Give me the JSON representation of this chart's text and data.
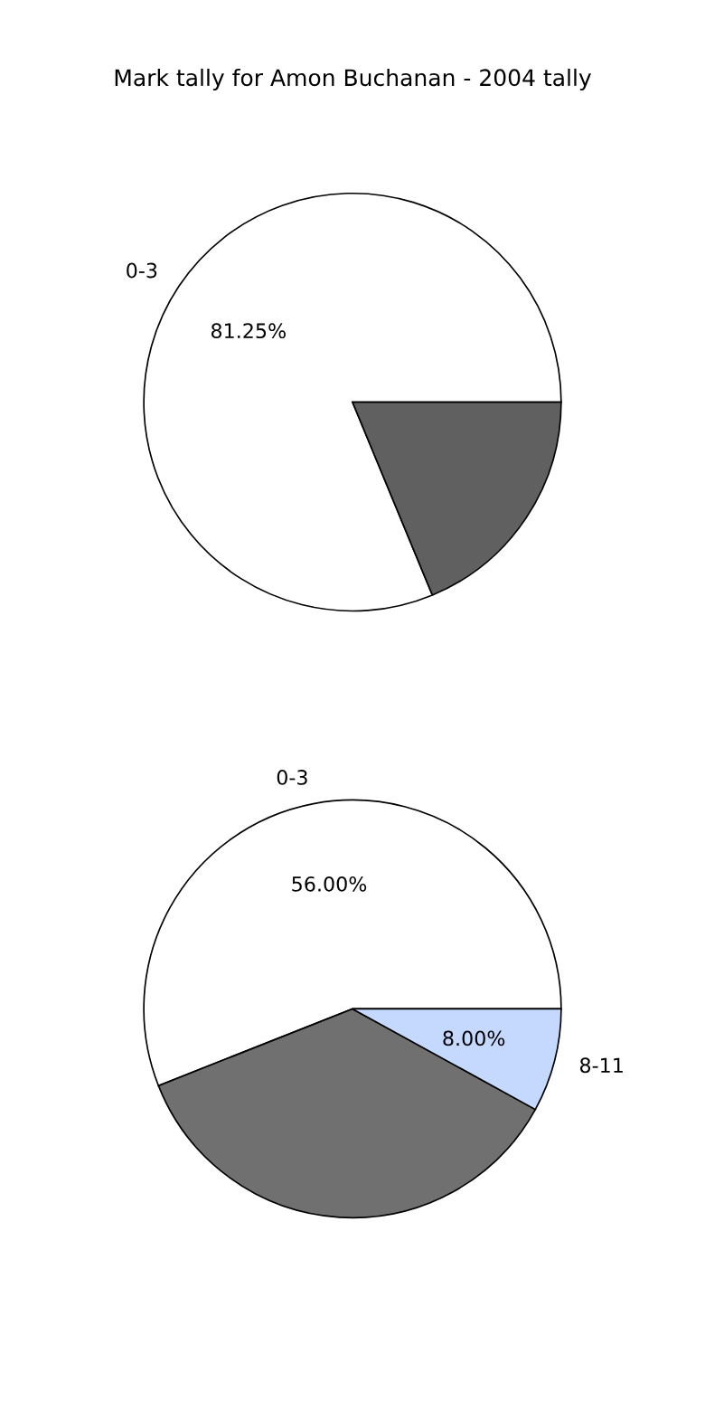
{
  "chart_data": [
    {
      "type": "pie",
      "title": "Mark tally for Amon Buchanan - 2004 tally",
      "categories": [
        "0-3",
        null
      ],
      "values": [
        81.25,
        18.75
      ],
      "colors": [
        "#ffffff",
        "#606060"
      ],
      "value_labels": [
        "81.25%",
        null
      ]
    },
    {
      "type": "pie",
      "categories": [
        "0-3",
        null,
        "8-11"
      ],
      "values": [
        56,
        36,
        8
      ],
      "colors": [
        "#ffffff",
        "#707070",
        "#c5d9ff"
      ],
      "value_labels": [
        "56.00%",
        null,
        "8.00%"
      ]
    }
  ]
}
